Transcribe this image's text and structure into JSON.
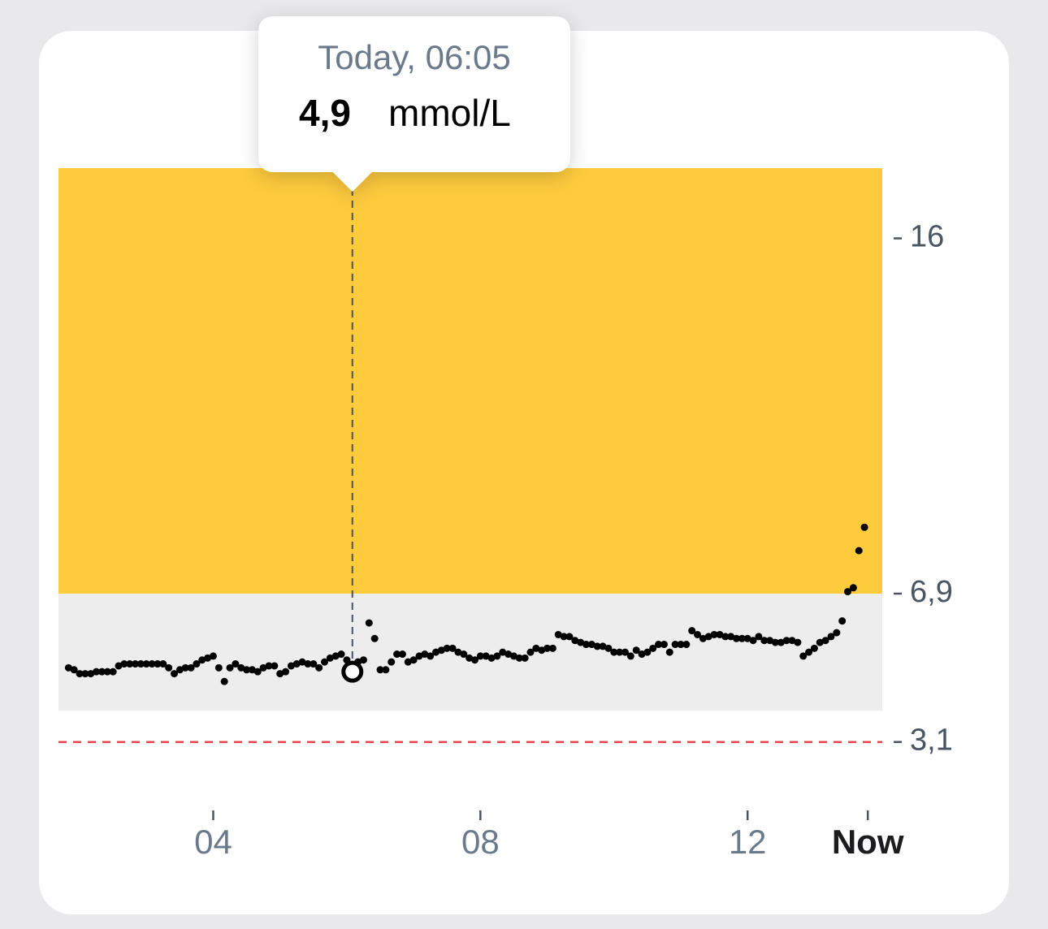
{
  "chart_data": {
    "type": "scatter",
    "x": [
      110,
      115,
      120,
      125,
      130,
      135,
      140,
      145,
      150,
      155,
      160,
      165,
      170,
      175,
      180,
      185,
      190,
      195,
      200,
      205,
      210,
      215,
      220,
      225,
      230,
      235,
      240,
      245,
      250,
      255,
      260,
      265,
      270,
      275,
      280,
      285,
      290,
      295,
      300,
      305,
      310,
      315,
      320,
      325,
      330,
      335,
      340,
      345,
      350,
      355,
      360,
      365,
      370,
      375,
      380,
      385,
      390,
      395,
      400,
      405,
      410,
      415,
      420,
      425,
      430,
      435,
      440,
      445,
      450,
      455,
      460,
      465,
      470,
      475,
      480,
      485,
      490,
      495,
      500,
      505,
      510,
      515,
      520,
      525,
      530,
      535,
      540,
      545,
      550,
      555,
      560,
      565,
      570,
      575,
      580,
      585,
      590,
      595,
      600,
      605,
      610,
      615,
      620,
      625,
      630,
      635,
      640,
      645,
      650,
      655,
      660,
      665,
      670,
      675,
      680,
      685,
      690,
      695,
      700,
      705,
      710,
      715,
      720,
      725,
      730,
      735,
      740,
      745,
      750,
      755,
      760,
      765,
      770,
      775,
      780,
      785,
      790,
      795,
      800,
      805,
      810,
      815,
      820,
      825
    ],
    "values": [
      5.0,
      4.95,
      4.85,
      4.85,
      4.85,
      4.9,
      4.9,
      4.9,
      4.9,
      5.05,
      5.1,
      5.1,
      5.1,
      5.1,
      5.1,
      5.1,
      5.1,
      5.1,
      5.0,
      4.85,
      4.95,
      5.0,
      5.0,
      5.1,
      5.2,
      5.25,
      5.3,
      5.0,
      4.65,
      5.0,
      5.1,
      5.0,
      4.95,
      4.95,
      4.9,
      5.0,
      5.05,
      5.05,
      4.85,
      4.9,
      5.05,
      5.1,
      5.15,
      5.1,
      5.1,
      5.0,
      5.15,
      5.25,
      5.3,
      5.35,
      5.2,
      4.9,
      5.15,
      5.2,
      6.15,
      5.75,
      4.95,
      4.95,
      5.15,
      5.35,
      5.35,
      5.15,
      5.2,
      5.3,
      5.35,
      5.3,
      5.4,
      5.45,
      5.5,
      5.5,
      5.4,
      5.35,
      5.25,
      5.2,
      5.3,
      5.3,
      5.25,
      5.3,
      5.4,
      5.35,
      5.3,
      5.25,
      5.25,
      5.4,
      5.5,
      5.45,
      5.5,
      5.5,
      5.85,
      5.8,
      5.8,
      5.7,
      5.65,
      5.6,
      5.6,
      5.55,
      5.55,
      5.5,
      5.4,
      5.4,
      5.4,
      5.3,
      5.45,
      5.35,
      5.4,
      5.5,
      5.6,
      5.6,
      5.4,
      5.6,
      5.6,
      5.6,
      5.95,
      5.85,
      5.75,
      5.8,
      5.85,
      5.85,
      5.8,
      5.8,
      5.75,
      5.75,
      5.75,
      5.7,
      5.8,
      5.7,
      5.7,
      5.65,
      5.65,
      5.7,
      5.7,
      5.65,
      5.3,
      5.4,
      5.5,
      5.65,
      5.7,
      5.8,
      5.9,
      6.2,
      6.95,
      7.05,
      8.0,
      8.6
    ],
    "color": "#000000",
    "xlim": [
      101,
      841
    ],
    "xticks": [
      {
        "value": 240,
        "label": "04"
      },
      {
        "value": 480,
        "label": "08"
      },
      {
        "value": 720,
        "label": "12"
      },
      {
        "value": 828,
        "label": "Now"
      }
    ],
    "ylim": [
      1.7,
      17.8
    ],
    "yticks": [
      16,
      {
        "value": 6.9,
        "label": "6,9"
      },
      {
        "value": 3.1,
        "label": "3,1"
      }
    ],
    "ranges": [
      {
        "from": 6.9,
        "to": 17.8,
        "color": "#fecb3d"
      },
      {
        "from": 3.9,
        "to": 6.9,
        "color": "#ededed"
      }
    ],
    "low_line": {
      "value": 3.1,
      "color": "#e8474c"
    },
    "tooltip": {
      "time": "Today, 06:05",
      "x": 365,
      "value": 4.9,
      "value_label": "4,9",
      "unit": "mmol/L"
    }
  }
}
